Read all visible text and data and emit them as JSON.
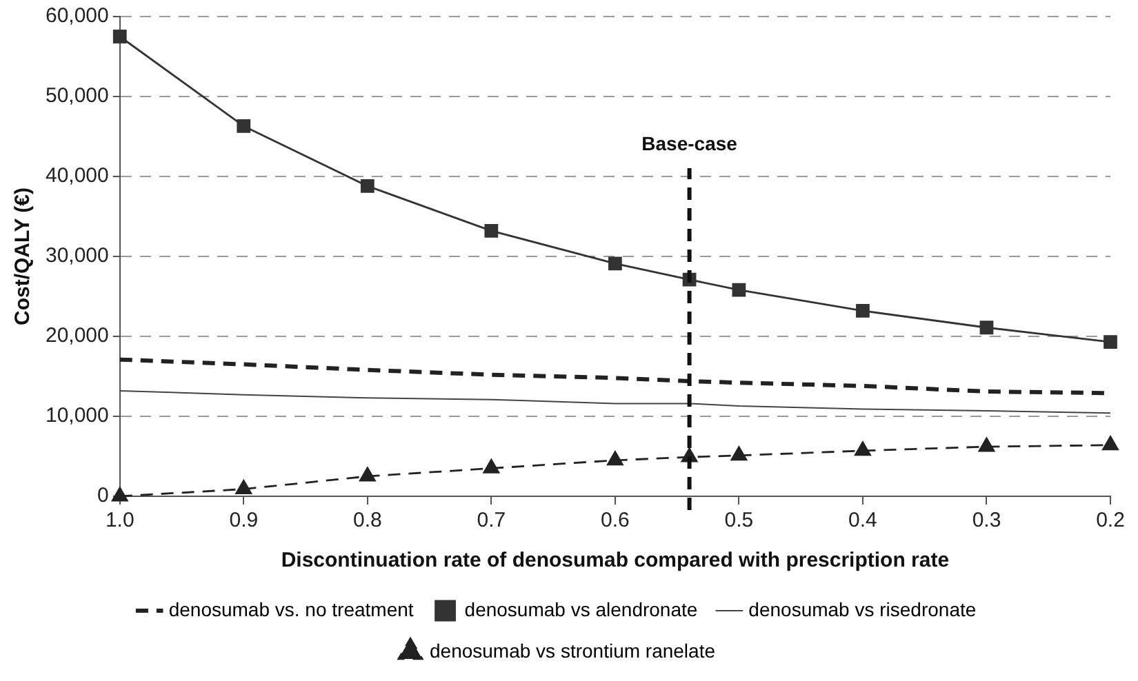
{
  "chart_data": {
    "type": "line",
    "xlabel": "Discontinuation rate of denosumab compared with prescription rate",
    "ylabel": "Cost/QALY (€)",
    "x": [
      1.0,
      0.9,
      0.8,
      0.7,
      0.6,
      0.54,
      0.5,
      0.4,
      0.3,
      0.2
    ],
    "xlim": [
      1.0,
      0.2
    ],
    "xticks": [
      {
        "value": 1,
        "label": "1.0"
      },
      0.9,
      0.8,
      0.7,
      0.6,
      0.5,
      0.4,
      0.3,
      0.2
    ],
    "ylim": [
      0,
      60000
    ],
    "yticks": [
      0,
      {
        "value": 10000,
        "label": "10,000"
      },
      {
        "value": 20000,
        "label": "20,000"
      },
      {
        "value": 30000,
        "label": "30,000"
      },
      {
        "value": 40000,
        "label": "40,000"
      },
      {
        "value": 50000,
        "label": "50,000"
      },
      {
        "value": 60000,
        "label": "60,000"
      }
    ],
    "grid": "y",
    "legend": "bottom",
    "ref_lines": [
      {
        "axis": "x",
        "value": 0.54,
        "label": "Base-case",
        "color": "#111111",
        "line_style": "dashed"
      }
    ],
    "series": [
      {
        "name": "denosumab vs. no treatment",
        "color": "#222222",
        "line_style": "dashed",
        "marker": "none",
        "values": [
          17100,
          16500,
          15800,
          15200,
          14800,
          14400,
          14200,
          13800,
          13100,
          12900
        ]
      },
      {
        "name": "denosumab vs alendronate",
        "color": "#333333",
        "line_style": "solid",
        "marker": "square",
        "values": [
          57500,
          46300,
          38800,
          33200,
          29100,
          27100,
          25800,
          23200,
          21100,
          19300
        ]
      },
      {
        "name": "denosumab vs risedronate",
        "color": "#444444",
        "line_style": "solid",
        "marker": "none",
        "values": [
          13200,
          12700,
          12300,
          12100,
          11600,
          11600,
          11300,
          10900,
          10700,
          10400
        ]
      },
      {
        "name": "denosumab vs strontium ranelate",
        "color": "#222222",
        "line_style": "dashed",
        "marker": "triangle",
        "values": [
          0,
          900,
          2500,
          3500,
          4500,
          4900,
          5100,
          5700,
          6200,
          6400
        ]
      }
    ]
  }
}
